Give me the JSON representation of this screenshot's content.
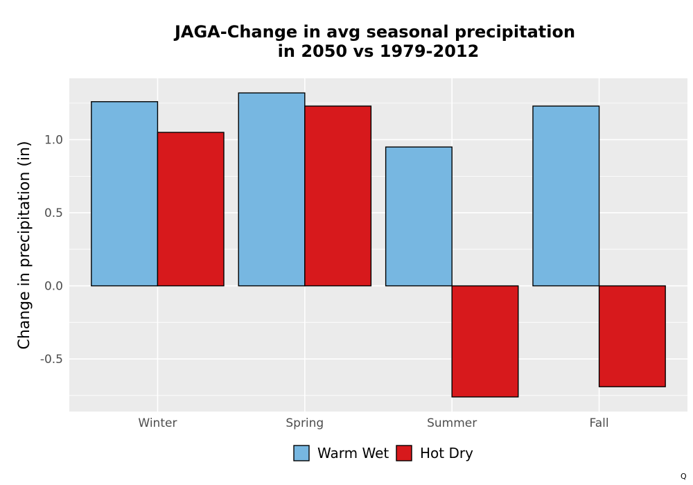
{
  "chart_data": {
    "type": "bar",
    "title": "JAGA-Change in avg seasonal precipitation",
    "subtitle": "in 2050 vs 1979-2012",
    "xlabel": "",
    "ylabel": "Change in precipitation (in)",
    "categories": [
      "Winter",
      "Spring",
      "Summer",
      "Fall"
    ],
    "series": [
      {
        "name": "Warm Wet",
        "color": "#77b7e1",
        "values": [
          1.26,
          1.32,
          0.95,
          1.23
        ]
      },
      {
        "name": "Hot Dry",
        "color": "#d7191c",
        "values": [
          1.05,
          1.23,
          -0.76,
          -0.69
        ]
      }
    ],
    "ylim": [
      -0.86,
      1.42
    ],
    "yticks": [
      -0.5,
      0.0,
      0.5,
      1.0
    ],
    "ytick_labels": [
      "-0.5",
      "0.0",
      "0.5",
      "1.0"
    ],
    "grid": true,
    "legend_position": "bottom",
    "panel_background": "#ebebeb",
    "grid_color": "#ffffff",
    "bar_outline": "#000000"
  },
  "corner_mark": "Q"
}
